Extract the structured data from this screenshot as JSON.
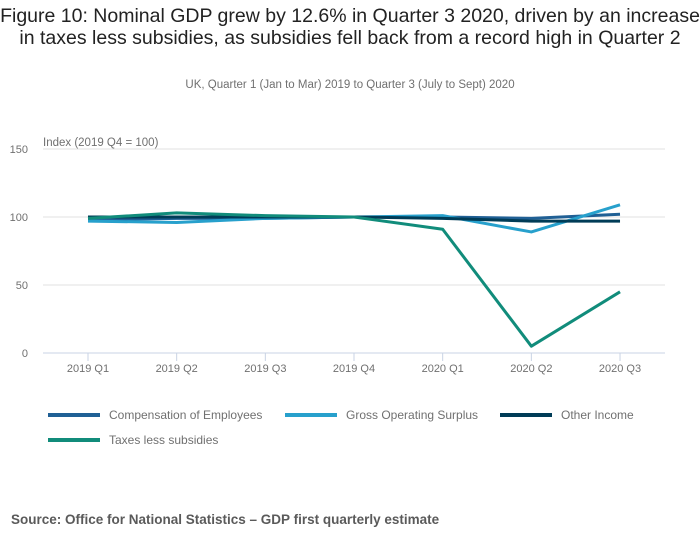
{
  "chart_data": {
    "type": "line",
    "title": "Figure 10: Nominal GDP grew by 12.6% in Quarter 3 2020, driven by an increase in taxes less subsidies, as subsidies fell back from a record high in Quarter 2",
    "subtitle": "UK, Quarter 1 (Jan to Mar) 2019 to Quarter 3 (July to Sept) 2020",
    "ylabel": "Index (2019 Q4 = 100)",
    "xlabel": "",
    "categories": [
      "2019 Q1",
      "2019 Q2",
      "2019 Q3",
      "2019 Q4",
      "2020 Q1",
      "2020 Q2",
      "2020 Q3"
    ],
    "ylim": [
      0,
      150
    ],
    "yticks": [
      0,
      50,
      100,
      150
    ],
    "grid": true,
    "legend_position": "bottom",
    "series": [
      {
        "name": "Compensation of Employees",
        "color": "#206095",
        "values": [
          98,
          99,
          99,
          100,
          100,
          99,
          102
        ]
      },
      {
        "name": "Gross Operating Surplus",
        "color": "#27a0cc",
        "values": [
          97,
          96,
          99,
          100,
          101,
          89,
          109
        ]
      },
      {
        "name": "Other Income",
        "color": "#003c57",
        "values": [
          100,
          100,
          100,
          100,
          99,
          97,
          97
        ]
      },
      {
        "name": "Taxes less subsidies",
        "color": "#118c7b",
        "values": [
          99,
          103,
          101,
          100,
          91,
          5,
          45
        ]
      }
    ],
    "source": "Source: Office for National Statistics – GDP first quarterly estimate"
  }
}
